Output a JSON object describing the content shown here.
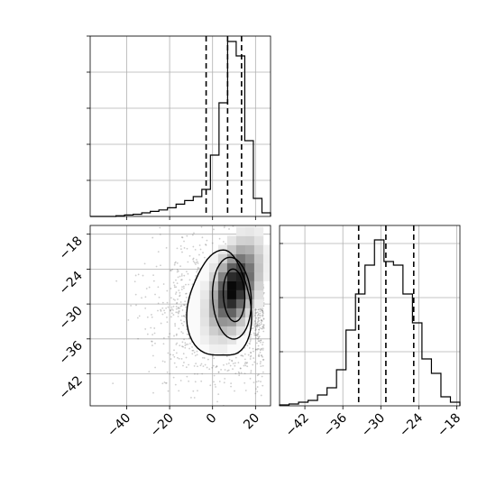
{
  "chart_data": {
    "type": "corner",
    "colors": {
      "line": "#000000",
      "grid": "#b0b0b0",
      "scatter": "#6f6f6f"
    },
    "panels": [
      {
        "id": "hist-x",
        "type": "histogram",
        "title": "",
        "xlabel": "",
        "ylabel": "",
        "grid": true,
        "xlim": [
          -57,
          27
        ],
        "ylim": [
          0,
          1.0
        ],
        "bin_edges": [
          -57,
          -53,
          -49,
          -45,
          -41,
          -37,
          -33,
          -29,
          -25,
          -21,
          -17,
          -13,
          -9,
          -5,
          -1,
          3,
          7,
          11,
          15,
          19,
          23,
          27
        ],
        "counts": [
          0,
          0,
          0,
          0.004,
          0.008,
          0.012,
          0.02,
          0.028,
          0.036,
          0.048,
          0.068,
          0.088,
          0.11,
          0.15,
          0.34,
          0.63,
          0.97,
          0.89,
          0.42,
          0.1,
          0.02
        ],
        "quantile_lines": [
          -3,
          7,
          13.5
        ],
        "xticks": [
          -40,
          -20,
          0,
          20
        ],
        "yticks": [
          0.2,
          0.4,
          0.6,
          0.8,
          1.0
        ],
        "show_tick_labels": false
      },
      {
        "id": "scatter-xy",
        "type": "scatter-density",
        "title": "",
        "xlabel": "",
        "ylabel": "",
        "grid": true,
        "xlim": [
          -57,
          27
        ],
        "ylim": [
          -47.5,
          -16.5
        ],
        "xticks": [
          -40,
          -20,
          0,
          20
        ],
        "xtick_labels": [
          "−40",
          "−20",
          "0",
          "20"
        ],
        "yticks": [
          -18,
          -24,
          -30,
          -36,
          -42
        ],
        "ytick_labels": [
          "−18",
          "−24",
          "−30",
          "−36",
          "−42"
        ],
        "density_center": [
          8,
          -28
        ],
        "density_spread": [
          6,
          4
        ],
        "scatter_center": [
          5,
          -31
        ],
        "scatter_spread": [
          16,
          6
        ],
        "scatter_count": 1500,
        "contour_levels": [
          {
            "cx": 5,
            "cy": -30.5,
            "rx": 14.5,
            "ry": 9.5,
            "shape": "outer"
          },
          {
            "cx": 9,
            "cy": -29,
            "rx": 9,
            "ry": 7
          },
          {
            "cx": 10,
            "cy": -28.5,
            "rx": 5,
            "ry": 4.5
          }
        ]
      },
      {
        "id": "hist-y",
        "type": "histogram",
        "title": "",
        "xlabel": "",
        "ylabel": "",
        "grid": true,
        "xlim": [
          -46,
          -17.5
        ],
        "ylim": [
          0,
          1.0
        ],
        "bin_edges": [
          -46,
          -44.5,
          -43,
          -41.5,
          -40,
          -38.5,
          -37,
          -35.5,
          -34,
          -32.5,
          -31,
          -29.5,
          -28,
          -26.5,
          -25,
          -23.5,
          -22,
          -20.5,
          -19,
          -17.5
        ],
        "counts": [
          0.005,
          0.01,
          0.02,
          0.03,
          0.06,
          0.1,
          0.2,
          0.42,
          0.62,
          0.78,
          0.92,
          0.8,
          0.78,
          0.62,
          0.46,
          0.26,
          0.18,
          0.05,
          0.02
        ],
        "quantile_lines": [
          -33.5,
          -29.2,
          -24.8
        ],
        "xticks": [
          -42,
          -36,
          -30,
          -24,
          -18
        ],
        "xtick_labels": [
          "−42",
          "−36",
          "−30",
          "−24",
          "−18"
        ],
        "yticks": [
          0.3,
          0.6,
          0.9
        ],
        "show_tick_labels": false
      }
    ]
  }
}
